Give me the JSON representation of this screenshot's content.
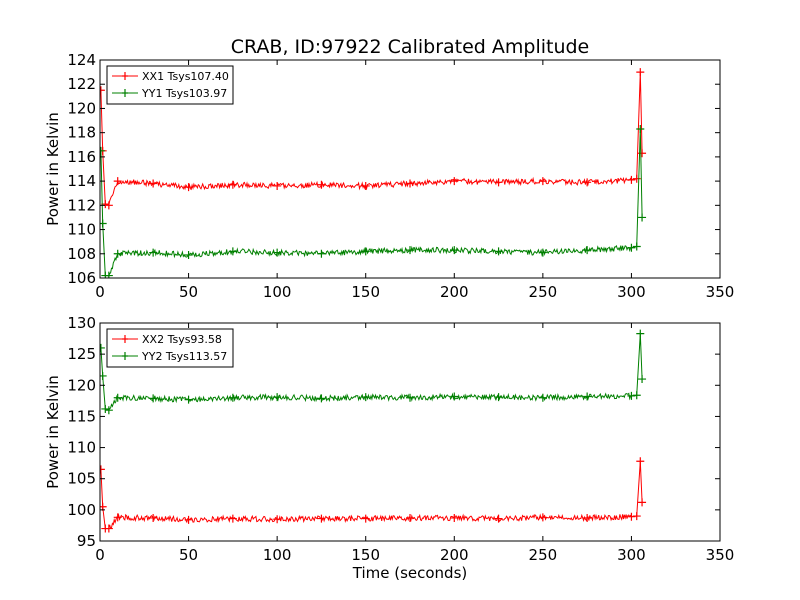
{
  "figure": {
    "title": "CRAB, ID:97922 Calibrated Amplitude",
    "xlabel": "Time (seconds)"
  },
  "chart_data": [
    {
      "type": "line",
      "ylabel": "Power in Kelvin",
      "xlim": [
        0,
        350
      ],
      "ylim": [
        106,
        124
      ],
      "xticks": [
        0,
        50,
        100,
        150,
        200,
        250,
        300,
        350
      ],
      "yticks": [
        106,
        108,
        110,
        112,
        114,
        116,
        118,
        120,
        122,
        124
      ],
      "grid": false,
      "legend_position": "upper-left",
      "series": [
        {
          "name": "XX1 Tsys107.40",
          "color": "#ff0000",
          "x": [
            0.5,
            1.5,
            3,
            5,
            10,
            30,
            50,
            75,
            100,
            125,
            150,
            175,
            200,
            225,
            250,
            275,
            300,
            303,
            305,
            306
          ],
          "y": [
            121.5,
            116.5,
            112.1,
            112.0,
            114.0,
            113.8,
            113.5,
            113.7,
            113.6,
            113.7,
            113.6,
            113.8,
            114.0,
            113.9,
            114.0,
            113.9,
            114.1,
            114.2,
            123.0,
            116.3
          ]
        },
        {
          "name": "YY1 Tsys103.97",
          "color": "#008000",
          "x": [
            0.5,
            1.5,
            3,
            5,
            10,
            30,
            50,
            75,
            100,
            125,
            150,
            175,
            200,
            225,
            250,
            275,
            300,
            303,
            305,
            306
          ],
          "y": [
            116.5,
            110.5,
            106.2,
            106.2,
            108.0,
            108.1,
            107.9,
            108.2,
            108.1,
            108.0,
            108.2,
            108.3,
            108.3,
            108.2,
            108.1,
            108.3,
            108.5,
            108.6,
            118.3,
            111.0
          ]
        }
      ]
    },
    {
      "type": "line",
      "ylabel": "Power in Kelvin",
      "xlim": [
        0,
        350
      ],
      "ylim": [
        95,
        130
      ],
      "xticks": [
        0,
        50,
        100,
        150,
        200,
        250,
        300,
        350
      ],
      "yticks": [
        95,
        100,
        105,
        110,
        115,
        120,
        125,
        130
      ],
      "grid": false,
      "legend_position": "upper-left",
      "series": [
        {
          "name": "XX2 Tsys93.58",
          "color": "#ff0000",
          "x": [
            0.5,
            1.5,
            3,
            5,
            10,
            30,
            50,
            75,
            100,
            125,
            150,
            175,
            200,
            225,
            250,
            275,
            300,
            303,
            305,
            306
          ],
          "y": [
            106.5,
            100.5,
            97.0,
            97.0,
            98.8,
            98.7,
            98.4,
            98.6,
            98.5,
            98.6,
            98.6,
            98.7,
            98.7,
            98.6,
            98.8,
            98.7,
            98.9,
            99.0,
            107.8,
            101.2
          ]
        },
        {
          "name": "YY2 Tsys113.57",
          "color": "#008000",
          "x": [
            0.5,
            1.5,
            3,
            5,
            10,
            30,
            50,
            75,
            100,
            125,
            150,
            175,
            200,
            225,
            250,
            275,
            300,
            303,
            305,
            306
          ],
          "y": [
            126.0,
            121.5,
            116.2,
            116.0,
            118.0,
            117.9,
            117.7,
            118.0,
            118.1,
            117.9,
            118.1,
            118.0,
            118.2,
            118.1,
            118.0,
            118.2,
            118.3,
            118.4,
            128.3,
            121.0
          ]
        }
      ]
    }
  ]
}
